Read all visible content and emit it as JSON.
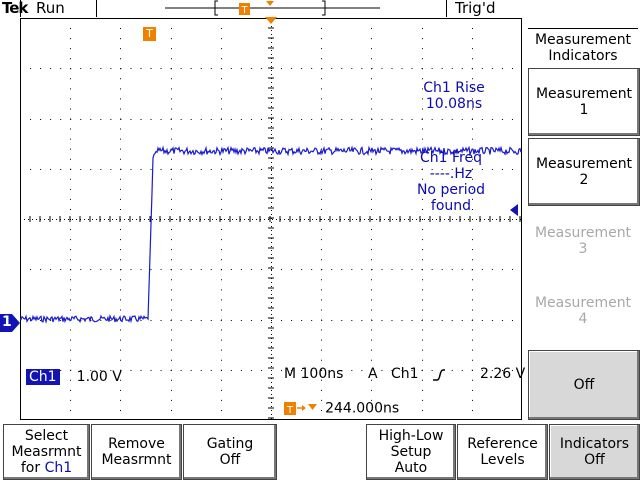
{
  "topbar": {
    "brand": "Tek",
    "acq_state": "Run",
    "trigger_status": "Trig'd"
  },
  "channel_marker": "1",
  "trigger_marker": "T",
  "measurement_readout": {
    "rise_label": "Ch1 Rise",
    "rise_value": "10.08ns",
    "freq_label": "Ch1 Freq",
    "freq_value": "----.Hz",
    "freq_msg_line1": "No period",
    "freq_msg_line2": "found"
  },
  "status": {
    "channel": "Ch1",
    "volts_div": "1.00 V",
    "timebase": "M 100ns",
    "trigger_mode": "A",
    "trigger_source": "Ch1",
    "trigger_level": "2.26 V",
    "trigger_offset": "244.000ns"
  },
  "side_menu": {
    "header_line1": "Measurement",
    "header_line2": "Indicators",
    "buttons": [
      {
        "line1": "Measurement",
        "line2": "1"
      },
      {
        "line1": "Measurement",
        "line2": "2"
      },
      {
        "line1": "Measurement",
        "line2": "3"
      },
      {
        "line1": "Measurement",
        "line2": "4"
      },
      {
        "line1": "Off",
        "line2": ""
      }
    ]
  },
  "bottom_menu": [
    {
      "line1": "Select",
      "line2": "Measrmnt",
      "line3": "for ",
      "line3b": "Ch1"
    },
    {
      "line1": "Remove",
      "line2": "Measrmnt"
    },
    {
      "line1": "Gating",
      "line2": "Off"
    },
    {
      "line1": "High-Low",
      "line2": "Setup",
      "line3": "Auto"
    },
    {
      "line1": "Reference",
      "line2": "Levels"
    },
    {
      "line1": "Indicators",
      "line2": "Off"
    }
  ],
  "colors": {
    "trace": "#1a1ad0",
    "accent_orange": "#f08000",
    "channel_blue": "#1414b4"
  }
}
